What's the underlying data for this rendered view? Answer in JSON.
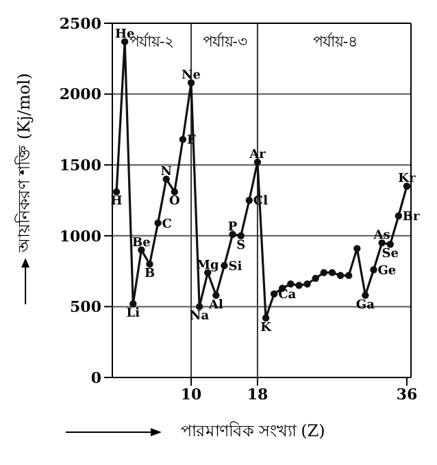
{
  "chart_data": {
    "type": "line",
    "xlabel": "পারমাণবিক সংখ্যা (Z)",
    "ylabel": "আয়নিকরণ শক্তি (Kj/mol)",
    "x": [
      1,
      2,
      3,
      4,
      5,
      6,
      7,
      8,
      9,
      10,
      11,
      12,
      13,
      14,
      15,
      16,
      17,
      18,
      19,
      20,
      21,
      22,
      23,
      24,
      25,
      26,
      27,
      28,
      29,
      30,
      31,
      32,
      33,
      34,
      35,
      36
    ],
    "series": [
      {
        "color": "#111111",
        "values": [
          1310,
          2370,
          520,
          900,
          800,
          1090,
          1400,
          1310,
          1680,
          2080,
          500,
          740,
          580,
          790,
          1010,
          1000,
          1250,
          1520,
          420,
          590,
          630,
          660,
          650,
          660,
          700,
          740,
          740,
          720,
          720,
          910,
          580,
          760,
          950,
          940,
          1140,
          1350
        ]
      }
    ],
    "xlim": [
      0.5,
      36.5
    ],
    "ylim": [
      0,
      2500
    ],
    "xticks": [
      10,
      18,
      36
    ],
    "yticks": [
      0,
      500,
      1000,
      1500,
      2000,
      2500
    ],
    "grid": "y",
    "marker": "circle",
    "line_style": "solid",
    "ref_lines": [
      {
        "axis": "x",
        "value": 10,
        "label": null,
        "color": "#333333"
      },
      {
        "axis": "x",
        "value": 18,
        "label": null,
        "color": "#333333"
      }
    ],
    "annotations": [
      "পর্যায়-২",
      "পর্যায়-৩",
      "পর্যায়-৪",
      {
        "text": "H",
        "x": 1,
        "y": 1310
      },
      {
        "text": "He",
        "x": 2,
        "y": 2370
      },
      {
        "text": "Li",
        "x": 3,
        "y": 520
      },
      {
        "text": "Be",
        "x": 4,
        "y": 900
      },
      {
        "text": "B",
        "x": 5,
        "y": 800
      },
      {
        "text": "C",
        "x": 6,
        "y": 1090
      },
      {
        "text": "N",
        "x": 7,
        "y": 1400
      },
      {
        "text": "O",
        "x": 8,
        "y": 1310
      },
      {
        "text": "F",
        "x": 9,
        "y": 1680
      },
      {
        "text": "Ne",
        "x": 10,
        "y": 2080
      },
      {
        "text": "Na",
        "x": 11,
        "y": 500
      },
      {
        "text": "Mg",
        "x": 12,
        "y": 740
      },
      {
        "text": "Al",
        "x": 13,
        "y": 580
      },
      {
        "text": "Si",
        "x": 14,
        "y": 790
      },
      {
        "text": "P",
        "x": 15,
        "y": 1010
      },
      {
        "text": "S",
        "x": 16,
        "y": 1000
      },
      {
        "text": "Cl",
        "x": 17,
        "y": 1250
      },
      {
        "text": "Ar",
        "x": 18,
        "y": 1520
      },
      {
        "text": "K",
        "x": 19,
        "y": 420
      },
      {
        "text": "Ca",
        "x": 20,
        "y": 590
      },
      {
        "text": "Ga",
        "x": 31,
        "y": 580
      },
      {
        "text": "Ge",
        "x": 32,
        "y": 760
      },
      {
        "text": "As",
        "x": 33,
        "y": 950
      },
      {
        "text": "Se",
        "x": 34,
        "y": 940
      },
      {
        "text": "Br",
        "x": 35,
        "y": 1140
      },
      {
        "text": "Kr",
        "x": 36,
        "y": 1350
      }
    ]
  }
}
